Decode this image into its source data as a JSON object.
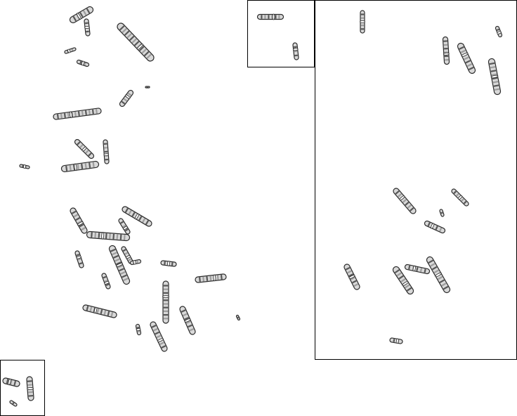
{
  "image": {
    "kind": "karyotype-metaphase-spread",
    "background_color": "#ffffff",
    "border_color": "#000000",
    "chromosome_color": "#2b2b2b",
    "chromosome_fill": "#8a8a8a",
    "panels": [
      "inset-top-center",
      "inset-right-large",
      "inset-bottom-left"
    ]
  }
}
